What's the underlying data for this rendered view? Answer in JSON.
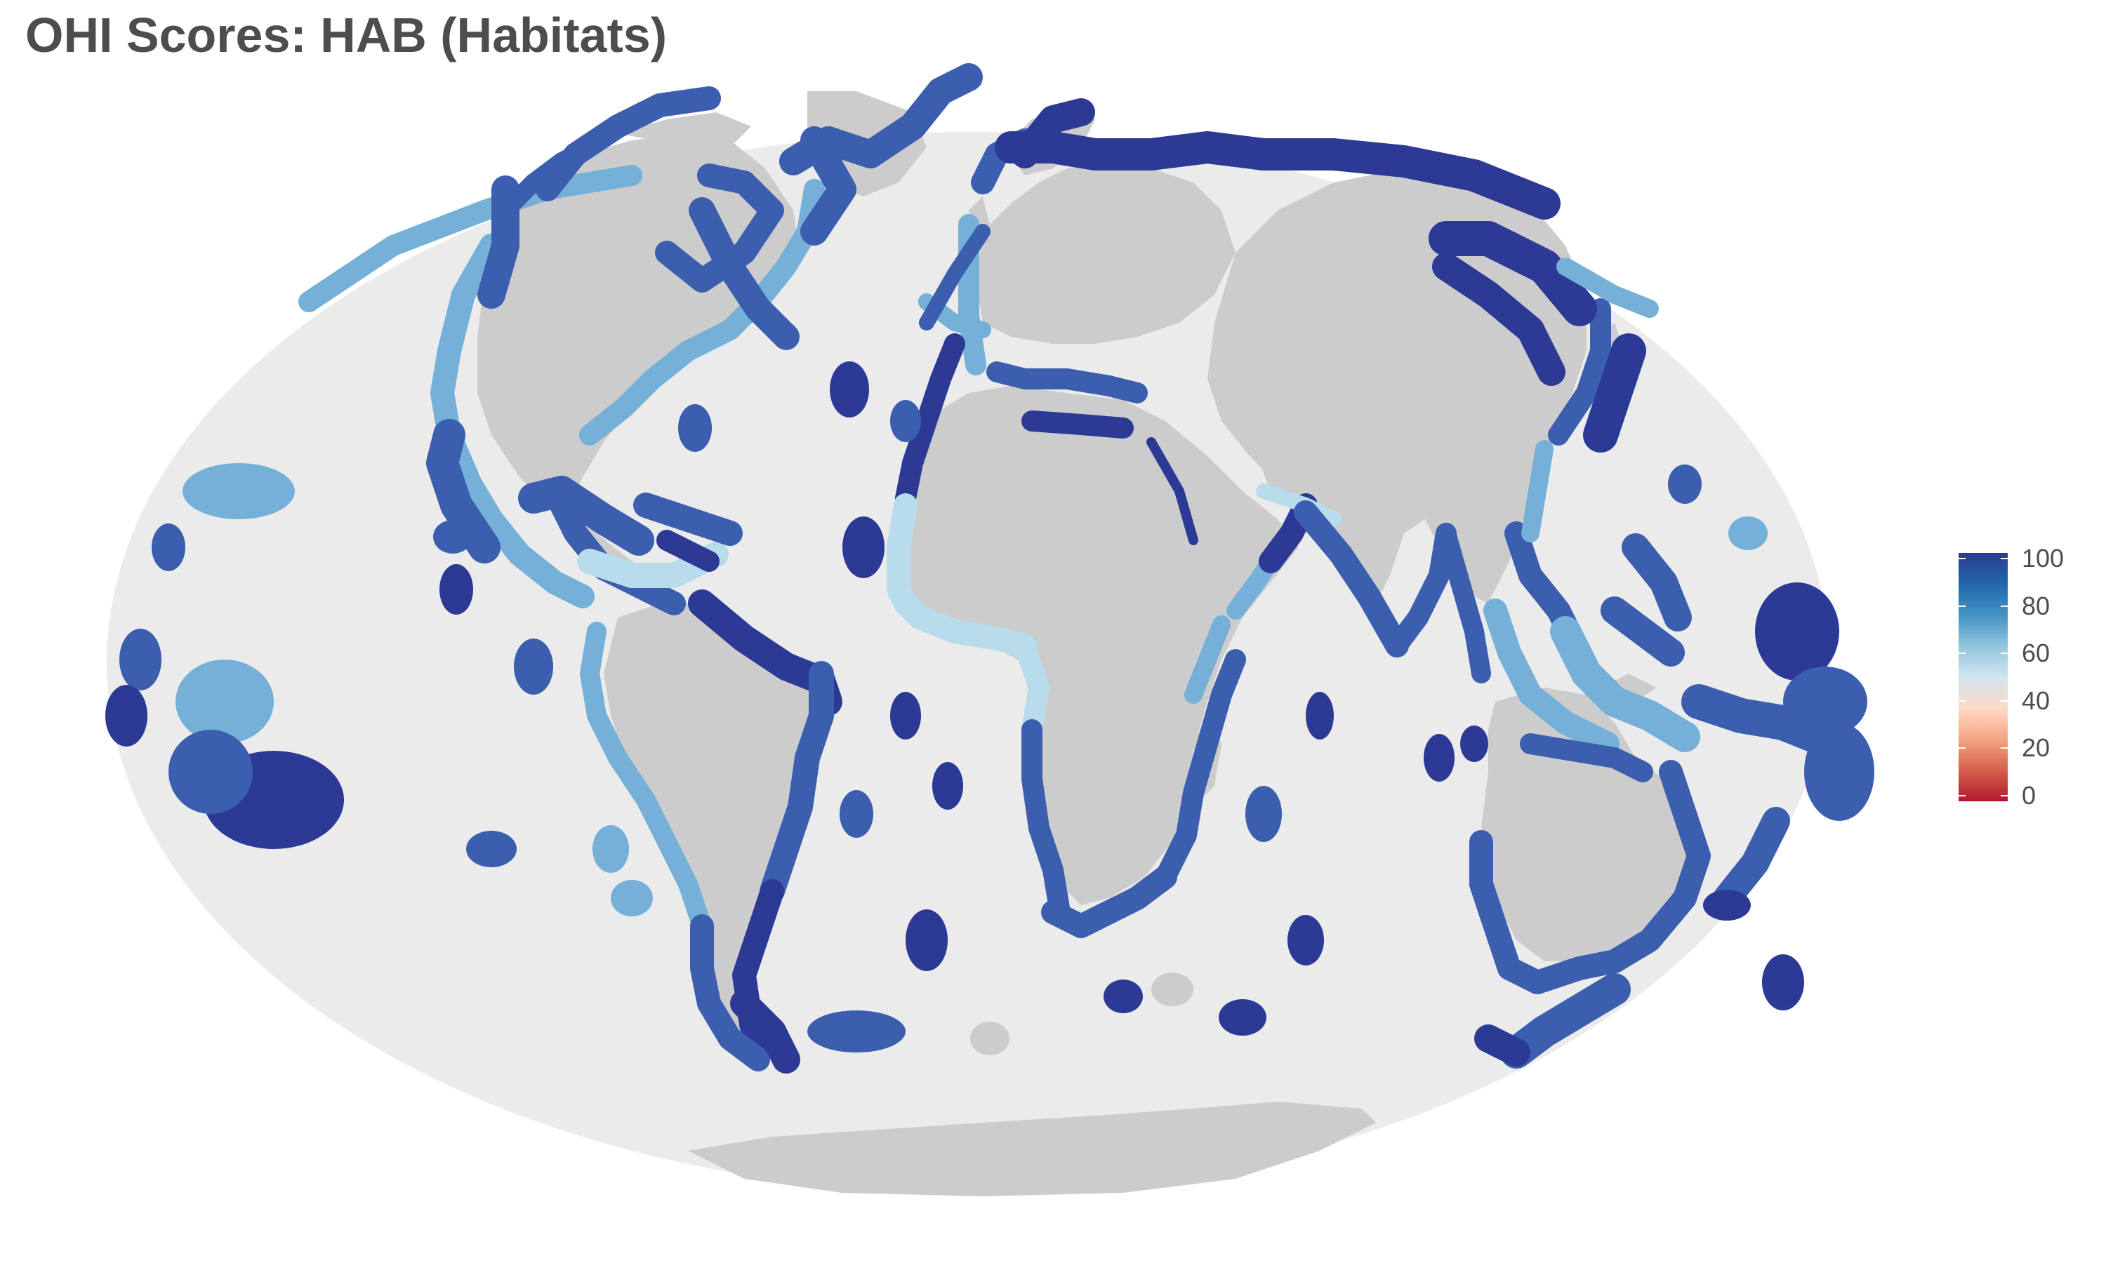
{
  "title": "OHI Scores: HAB (Habitats)",
  "legend": {
    "labels": [
      "100",
      "80",
      "60",
      "40",
      "20",
      "0"
    ],
    "values": [
      100,
      80,
      60,
      40,
      20,
      0
    ],
    "range": [
      0,
      100
    ],
    "colors": [
      "#b2182b",
      "#d6604d",
      "#f4a582",
      "#fddbc7",
      "#d1e5f0",
      "#92c5de",
      "#4393c3",
      "#2166ac",
      "#2c3a8f"
    ]
  },
  "map": {
    "projection": "mollweide",
    "ocean_color": "#ebebeb",
    "land_color": "#cccccc",
    "score_colors": {
      "very_high": "#2c3a95",
      "high": "#3b5fae",
      "medium": "#4a7cbb",
      "light": "#74b0d8",
      "pale": "#b8dcec"
    }
  }
}
